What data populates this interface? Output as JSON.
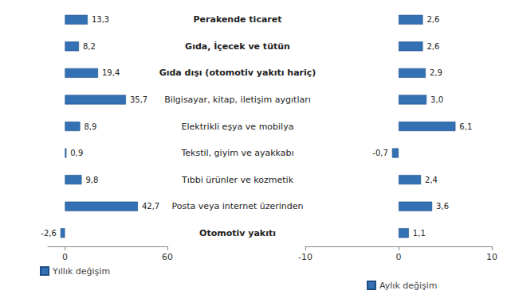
{
  "chart_data": [
    {
      "type": "bar",
      "orientation": "horizontal",
      "grid": false,
      "data_labels": true,
      "legend": "bottom left",
      "categories": [
        "Perakende ticaret",
        "Gıda, İçecek ve tütün",
        "Gıda dışı (otomotiv yakıtı hariç)",
        "Bilgisayar, kitap, iletişim aygıtları",
        "Elektrikli eşya ve mobilya",
        "Tekstil, giyim ve ayakkabı",
        "Tıbbi ürünler ve kozmetik",
        "Posta veya internet üzerinden",
        "Otomotiv yakıtı"
      ],
      "xlim": [
        -10,
        60
      ],
      "xticks": [
        0,
        60
      ],
      "series": [
        {
          "name": "Yıllık değişim",
          "color": "#3470b4",
          "values": [
            13.3,
            8.2,
            19.4,
            35.7,
            8.9,
            0.9,
            9.8,
            42.7,
            -2.6
          ],
          "value_labels": [
            "13,3",
            "8,2",
            "19,4",
            "35,7",
            "8,9",
            "0,9",
            "9,8",
            "42,7",
            "-2,6"
          ]
        }
      ]
    },
    {
      "type": "bar",
      "orientation": "horizontal",
      "grid": false,
      "data_labels": true,
      "legend": "bottom",
      "tick_labels": "x",
      "categories": [
        "Perakende ticaret",
        "Gıda, İçecek ve tütün",
        "Gıda dışı (otomotiv yakıtı hariç)",
        "Bilgisayar, kitap, iletişim aygıtları",
        "Elektrikli eşya ve mobilya",
        "Tekstil, giyim ve ayakkabı",
        "Tıbbi ürünler ve kozmetik",
        "Posta veya internet üzerinden",
        "Otomotiv yakıtı"
      ],
      "xlim": [
        -10,
        10
      ],
      "xticks": [
        -10,
        0,
        10
      ],
      "series": [
        {
          "name": "Aylık değişim",
          "color": "#3470b4",
          "values": [
            2.6,
            2.6,
            2.9,
            3.0,
            6.1,
            -0.7,
            2.4,
            3.6,
            1.1
          ],
          "value_labels": [
            "2,6",
            "2,6",
            "2,9",
            "3,0",
            "6,1",
            "-0,7",
            "2,4",
            "3,6",
            "1,1"
          ]
        }
      ]
    }
  ]
}
